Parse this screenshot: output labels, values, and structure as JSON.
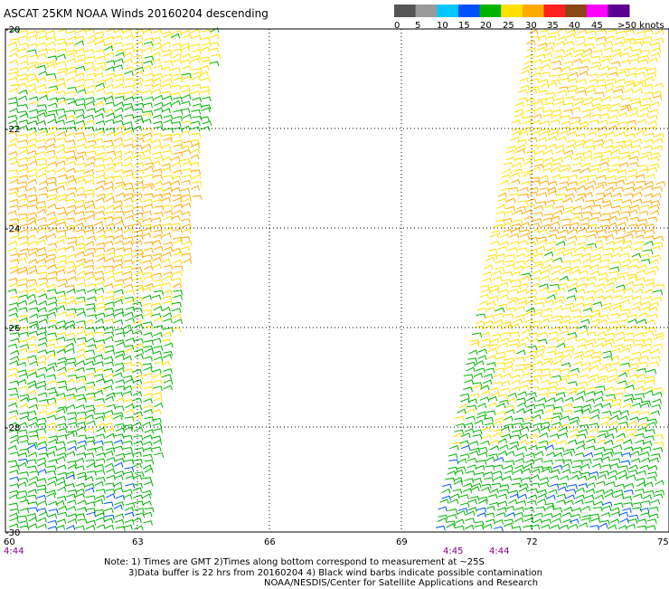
{
  "title": "ASCAT 25KM NOAA Winds 20160204 descending",
  "legend": {
    "labels": [
      "0",
      "5",
      "10",
      "15",
      "20",
      "25",
      "30",
      "35",
      "40",
      "45",
      ">50 knots"
    ],
    "colors": [
      "#555555",
      "#9a9a9a",
      "#00c8ff",
      "#0050ff",
      "#00b400",
      "#ffe000",
      "#ffaa00",
      "#ff2020",
      "#8b4513",
      "#ff00ff",
      "#5a0090"
    ]
  },
  "map": {
    "lat_labels": [
      "-20",
      "-22",
      "-24",
      "-26",
      "-28",
      "-30"
    ],
    "lon_labels": [
      "60",
      "63",
      "66",
      "69",
      "72",
      "75"
    ],
    "lat_range": [
      -30,
      -20
    ],
    "lon_range": [
      60,
      75
    ],
    "grid": "dotted",
    "pass_times": [
      "4:44",
      "4:45",
      "4:44"
    ],
    "swaths": [
      {
        "name": "west",
        "lon_west_bottom": 60,
        "lon_east_bottom": 63.1,
        "lon_east_top": 64.8
      },
      {
        "name": "east",
        "lon_west_bottom": 69.8,
        "lon_west_top": 72.0,
        "lon_east": 75
      }
    ]
  },
  "notes": {
    "line1": "Note: 1) Times are GMT 2)Times along bottom correspond to measurement at ~25S",
    "line2": "3)Data buffer is 22 hrs from 20160204 4) Black wind barbs indicate possible contamination",
    "line3": "NOAA/NESDIS/Center for Satellite Applications and Research"
  }
}
